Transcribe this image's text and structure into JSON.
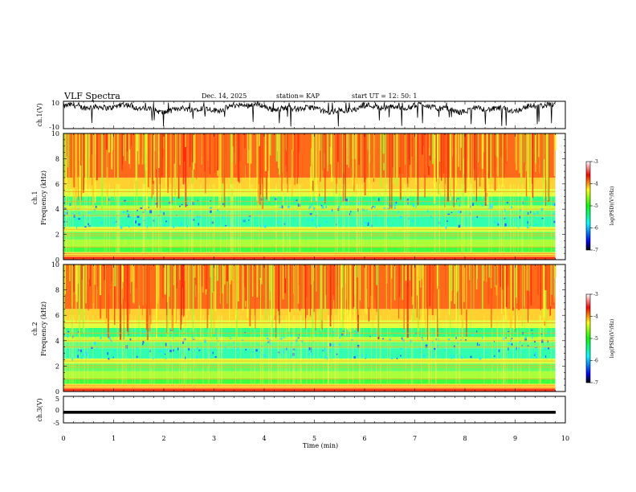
{
  "header": {
    "title": "VLF Spectra",
    "date": "Dec. 14, 2025",
    "station": "station= KAP",
    "start": "start  UT =   12: 50: 1"
  },
  "chart_data": [
    {
      "type": "line",
      "ylabel": "ch.1(V)",
      "ylim": [
        -10,
        10
      ],
      "yticks": [
        "10",
        "-10"
      ],
      "xlim": [
        0,
        10
      ],
      "description_level": 5
    },
    {
      "type": "heatmap",
      "ylabel_line1": "ch.1",
      "ylabel_line2": "Frequency  (kHz)",
      "ylim": [
        0,
        10
      ],
      "yticks": [
        "0",
        "2",
        "4",
        "6",
        "8",
        "10"
      ],
      "xlim": [
        0,
        10
      ],
      "colorbar": {
        "label": "log(PSD)(V²/Hz)",
        "ticks": [
          "-3",
          "-4",
          "-5",
          "-6",
          "-7"
        ],
        "range": [
          -7,
          -3
        ]
      }
    },
    {
      "type": "heatmap",
      "ylabel_line1": "ch.2",
      "ylabel_line2": "Frequency  (kHz)",
      "ylim": [
        0,
        10
      ],
      "yticks": [
        "0",
        "2",
        "4",
        "6",
        "8",
        "10"
      ],
      "xlim": [
        0,
        10
      ],
      "colorbar": {
        "label": "log(PSD)(V²/Hz)",
        "ticks": [
          "-3",
          "-4",
          "-5",
          "-6",
          "-7"
        ],
        "range": [
          -7,
          -3
        ]
      }
    },
    {
      "type": "line",
      "ylabel": "ch.3(V)",
      "ylim": [
        -5,
        5
      ],
      "yticks": [
        "5",
        "0",
        "-5"
      ],
      "xlim": [
        0,
        10
      ],
      "level": -1
    }
  ],
  "xaxis": {
    "label": "Time  (min)",
    "ticks": [
      "0",
      "1",
      "2",
      "3",
      "4",
      "5",
      "6",
      "7",
      "8",
      "9",
      "10"
    ]
  }
}
